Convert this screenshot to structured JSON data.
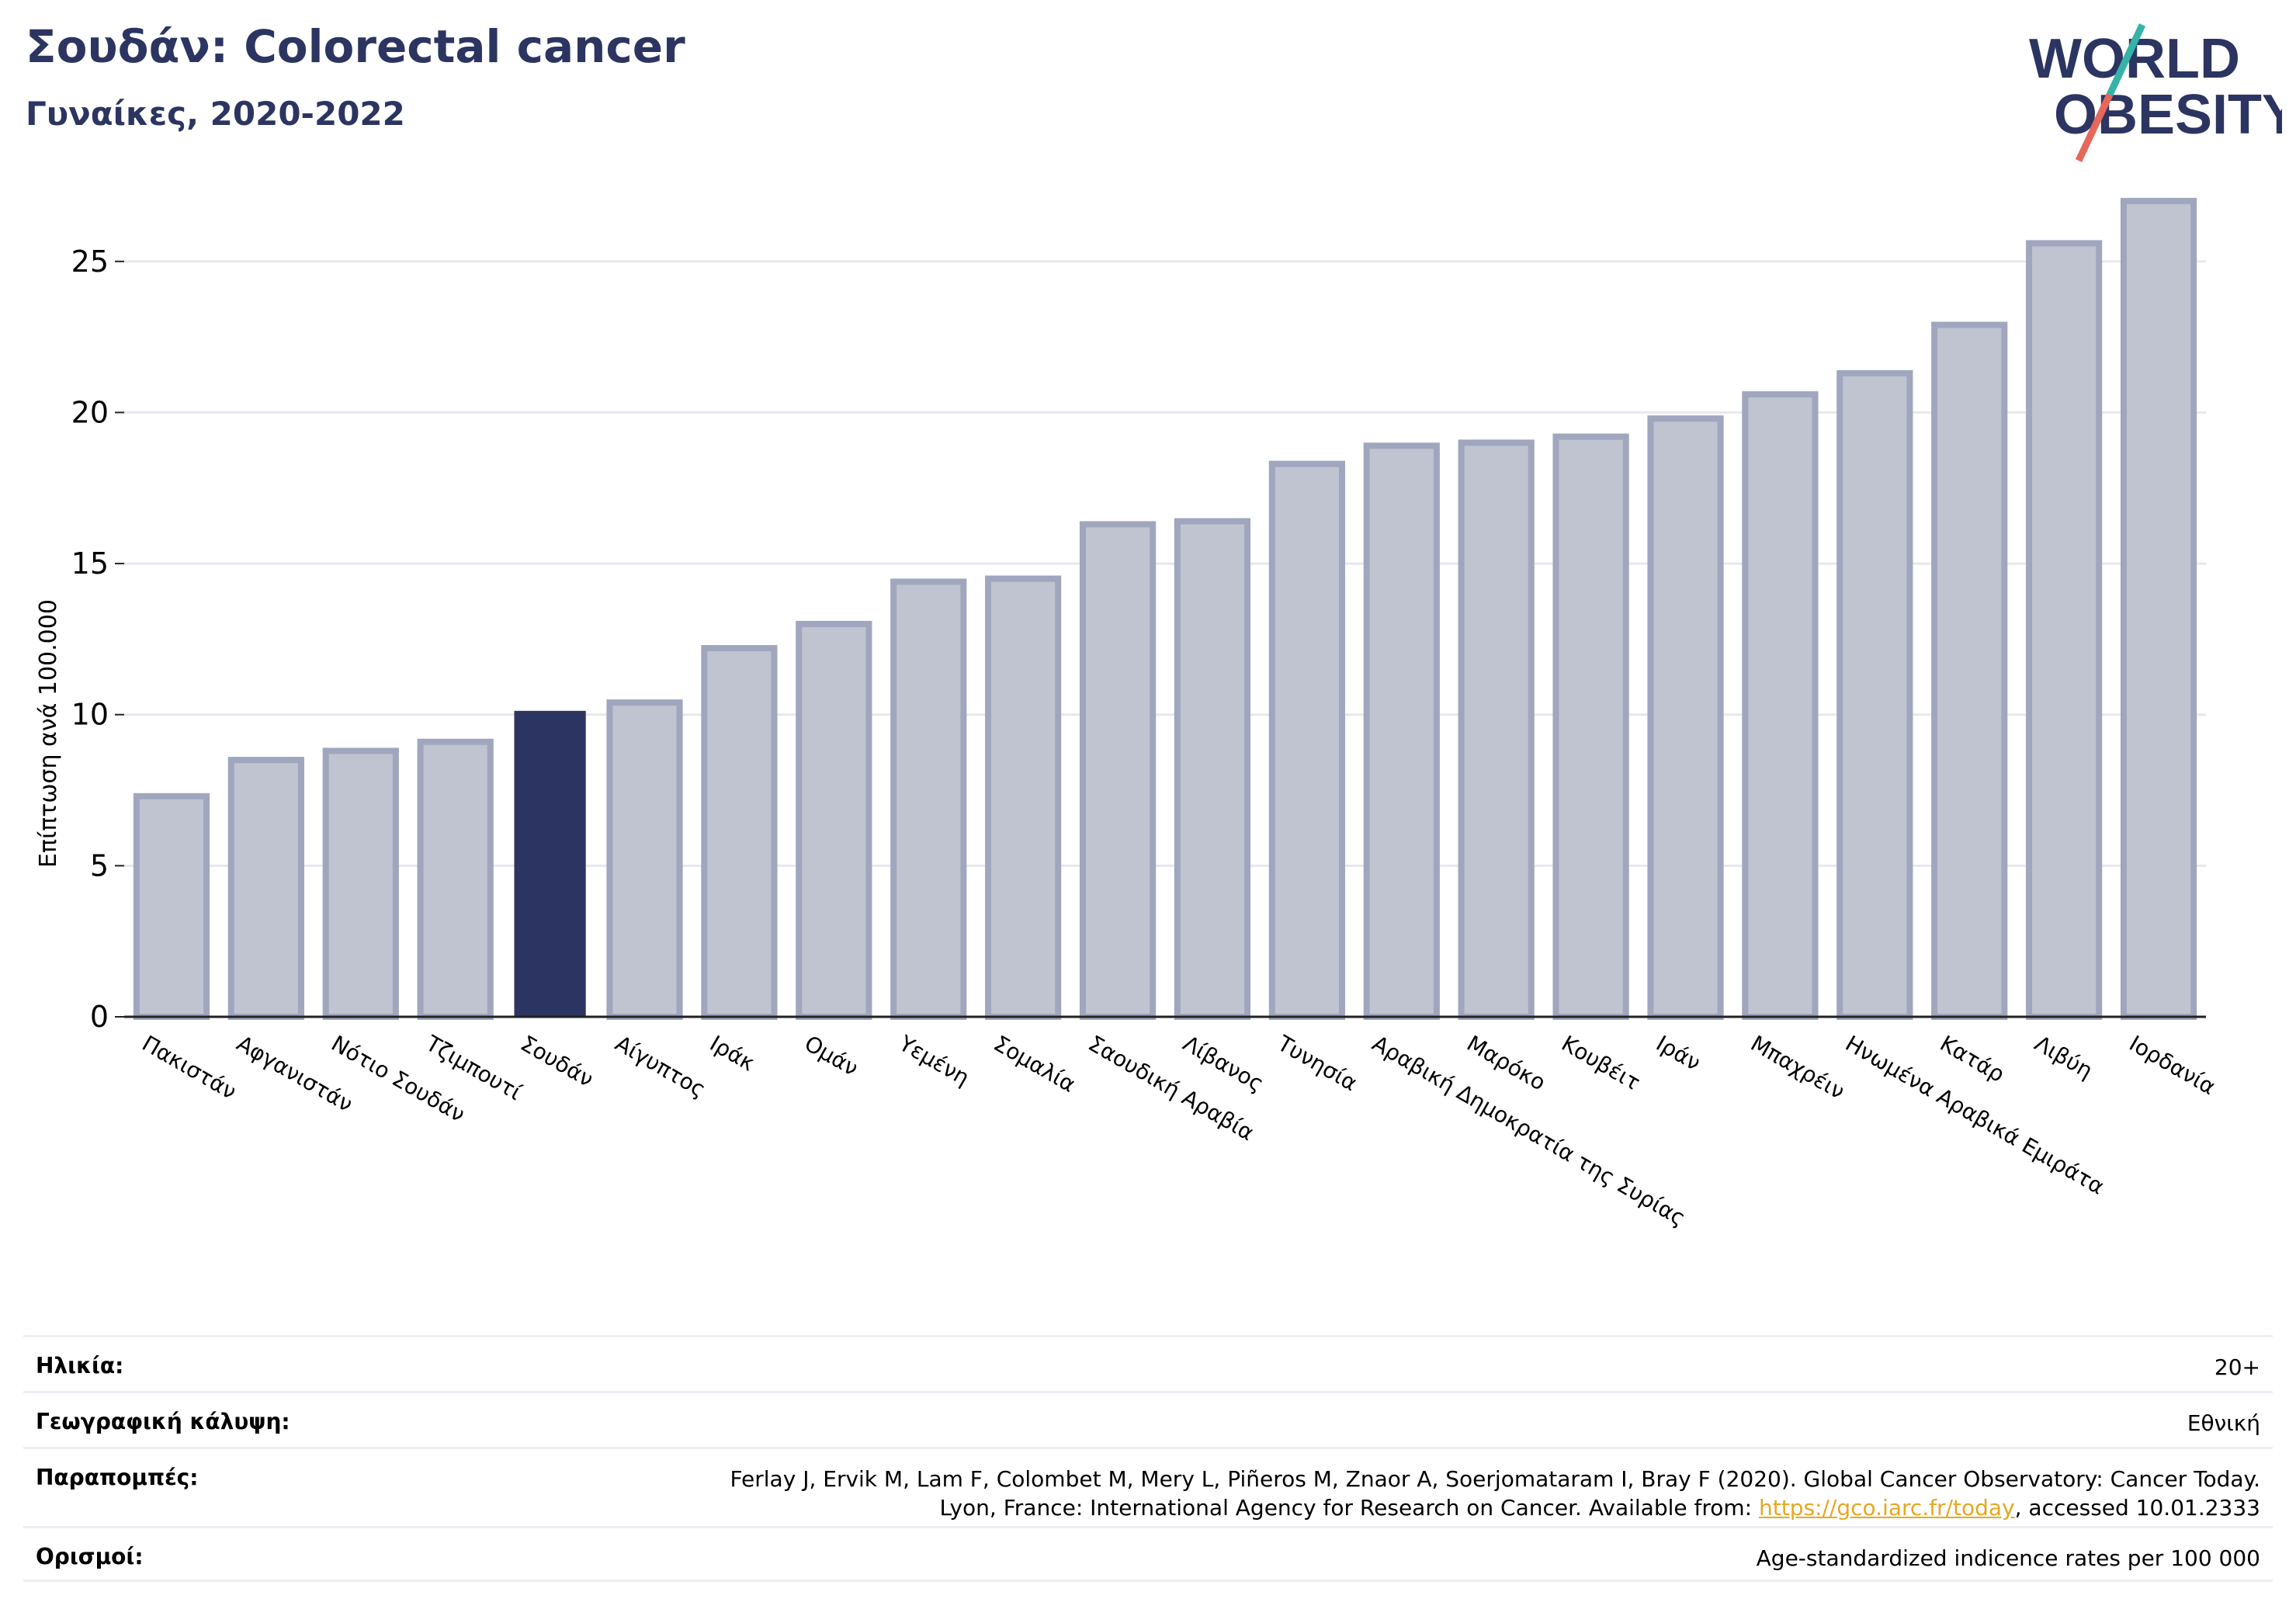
{
  "header": {
    "title": "Σουδάν: Colorectal cancer",
    "subtitle": "Γυναίκες, 2020-2022"
  },
  "logo": {
    "line1": "WORLD",
    "line2": "OBESITY",
    "colors": {
      "text": "#2c3561",
      "slash_top": "#36b3a8",
      "slash_bottom": "#e5685a"
    }
  },
  "colors": {
    "bar": "#c0c3d0",
    "bar_edge": "#a0a6bd",
    "highlight": "#2c3561",
    "grid": "#e6e8ef",
    "axis": "#222222"
  },
  "chart_data": {
    "type": "bar",
    "categories": [
      "Πακιστάν",
      "Αφγανιστάν",
      "Νότιο Σουδάν",
      "Τζιμπουτί",
      "Σουδάν",
      "Αίγυπτος",
      "Ιράκ",
      "Ομάν",
      "Υεμένη",
      "Σομαλία",
      "Σαουδική Αραβία",
      "Λίβανος",
      "Τυνησία",
      "Αραβική Δημοκρατία της Συρίας",
      "Μαρόκο",
      "Κουβέιτ",
      "Ιράν",
      "Μπαχρέιν",
      "Ηνωμένα Αραβικά Εμιράτα",
      "Κατάρ",
      "Λιβύη",
      "Ιορδανία"
    ],
    "values": [
      7.3,
      8.5,
      8.8,
      9.1,
      10.1,
      10.4,
      12.2,
      13.0,
      14.4,
      14.5,
      16.3,
      16.4,
      18.3,
      18.9,
      19.0,
      19.2,
      19.8,
      20.6,
      21.3,
      22.9,
      25.6,
      27.0
    ],
    "highlight": "Σουδάν",
    "ylabel": "Επίπτωση ανά 100.000",
    "yticks": [
      0,
      5,
      10,
      15,
      20,
      25
    ],
    "ylim": [
      0,
      28
    ],
    "grid": true
  },
  "info": {
    "age_label": "Ηλικία:",
    "age_value": "20+",
    "coverage_label": "Γεωγραφική κάλυψη:",
    "coverage_value": "Εθνική",
    "references_label": "Παραπομπές:",
    "references_line1": "Ferlay J, Ervik M, Lam F, Colombet M, Mery L, Piñeros M, Znaor A, Soerjomataram I, Bray F (2020). Global Cancer Observatory: Cancer Today.",
    "references_line2_pre": "Lyon, France: International Agency for Research on Cancer. Available from: ",
    "references_link": "https://gco.iarc.fr/today",
    "references_line2_post": ", accessed 10.01.2333",
    "definitions_label": "Ορισμοί:",
    "definitions_value": "Age-standardized indicence rates per 100 000"
  }
}
